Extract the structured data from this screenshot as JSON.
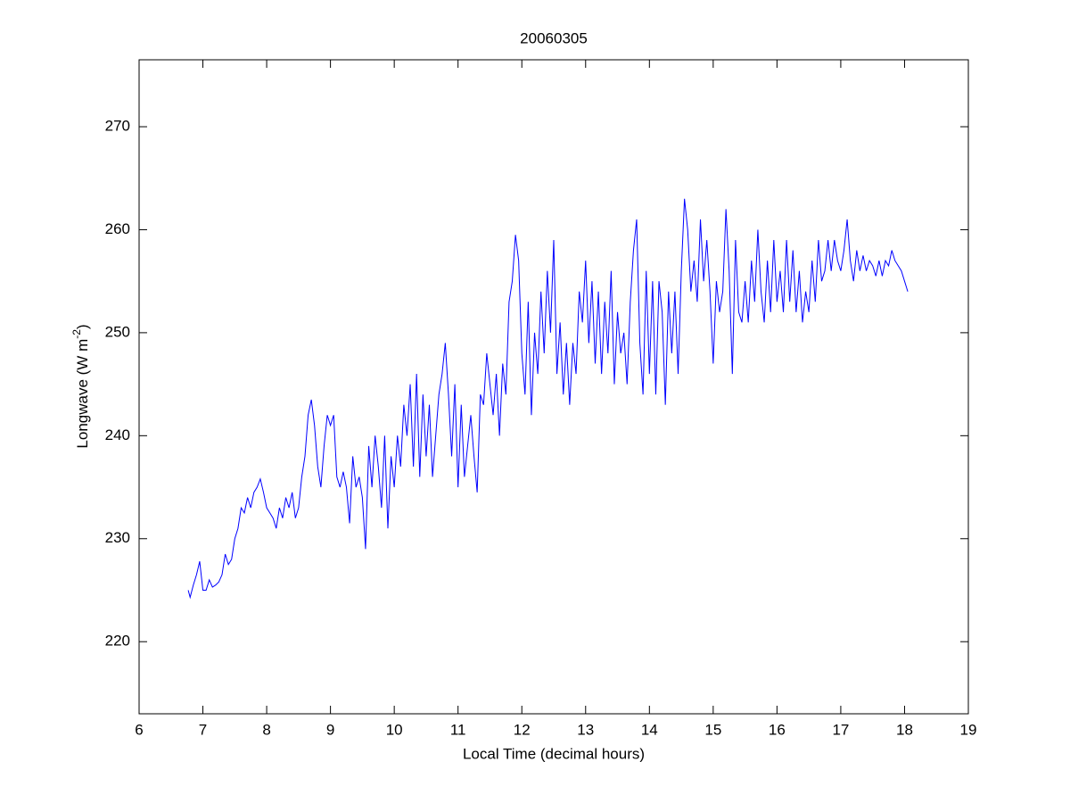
{
  "chart_data": {
    "type": "line",
    "title": "20060305",
    "xlabel": "Local Time (decimal hours)",
    "ylabel": {
      "text": "Longwave (W m",
      "superscript": "-2",
      "suffix": ")"
    },
    "xlim": [
      6,
      19
    ],
    "xticks": [
      6,
      7,
      8,
      9,
      10,
      11,
      12,
      13,
      14,
      15,
      16,
      17,
      18,
      19
    ],
    "ylim": [
      213,
      276.5
    ],
    "yticks": [
      220,
      230,
      240,
      250,
      260,
      270
    ],
    "grid": false,
    "series": [
      {
        "color": "#0000ff",
        "x": [
          6.77,
          6.8,
          6.85,
          6.9,
          6.95,
          7.0,
          7.05,
          7.1,
          7.15,
          7.2,
          7.25,
          7.3,
          7.35,
          7.4,
          7.45,
          7.5,
          7.55,
          7.6,
          7.65,
          7.7,
          7.75,
          7.8,
          7.85,
          7.9,
          7.95,
          8.0,
          8.05,
          8.1,
          8.15,
          8.2,
          8.25,
          8.3,
          8.35,
          8.4,
          8.45,
          8.5,
          8.55,
          8.6,
          8.65,
          8.7,
          8.75,
          8.8,
          8.85,
          8.9,
          8.95,
          9.0,
          9.05,
          9.1,
          9.15,
          9.2,
          9.25,
          9.3,
          9.35,
          9.4,
          9.45,
          9.5,
          9.55,
          9.6,
          9.65,
          9.7,
          9.75,
          9.8,
          9.85,
          9.9,
          9.95,
          10.0,
          10.05,
          10.1,
          10.15,
          10.2,
          10.25,
          10.3,
          10.35,
          10.4,
          10.45,
          10.5,
          10.55,
          10.6,
          10.65,
          10.7,
          10.75,
          10.8,
          10.85,
          10.9,
          10.95,
          11.0,
          11.05,
          11.1,
          11.15,
          11.2,
          11.25,
          11.3,
          11.35,
          11.4,
          11.45,
          11.5,
          11.55,
          11.6,
          11.65,
          11.7,
          11.75,
          11.8,
          11.85,
          11.9,
          11.95,
          12.0,
          12.05,
          12.1,
          12.15,
          12.2,
          12.25,
          12.3,
          12.35,
          12.4,
          12.45,
          12.5,
          12.55,
          12.6,
          12.65,
          12.7,
          12.75,
          12.8,
          12.85,
          12.9,
          12.95,
          13.0,
          13.05,
          13.1,
          13.15,
          13.2,
          13.25,
          13.3,
          13.35,
          13.4,
          13.45,
          13.5,
          13.55,
          13.6,
          13.65,
          13.7,
          13.75,
          13.8,
          13.85,
          13.9,
          13.95,
          14.0,
          14.05,
          14.1,
          14.15,
          14.2,
          14.25,
          14.3,
          14.35,
          14.4,
          14.45,
          14.5,
          14.55,
          14.6,
          14.65,
          14.7,
          14.75,
          14.8,
          14.85,
          14.9,
          14.95,
          15.0,
          15.05,
          15.1,
          15.15,
          15.2,
          15.25,
          15.3,
          15.35,
          15.4,
          15.45,
          15.5,
          15.55,
          15.6,
          15.65,
          15.7,
          15.75,
          15.8,
          15.85,
          15.9,
          15.95,
          16.0,
          16.05,
          16.1,
          16.15,
          16.2,
          16.25,
          16.3,
          16.35,
          16.4,
          16.45,
          16.5,
          16.55,
          16.6,
          16.65,
          16.7,
          16.75,
          16.8,
          16.85,
          16.9,
          16.95,
          17.0,
          17.05,
          17.1,
          17.15,
          17.2,
          17.25,
          17.3,
          17.35,
          17.4,
          17.45,
          17.5,
          17.55,
          17.6,
          17.65,
          17.7,
          17.75,
          17.8,
          17.85,
          17.9,
          17.95,
          18.0,
          18.05
        ],
        "values": [
          225,
          224.3,
          225.5,
          226.5,
          227.8,
          225,
          225,
          226,
          225.3,
          225.5,
          225.8,
          226.5,
          228.5,
          227.5,
          228,
          230,
          231,
          233,
          232.5,
          234,
          233,
          234.5,
          235,
          235.8,
          234.5,
          233,
          232.5,
          232,
          231,
          233,
          232,
          234,
          233,
          234.5,
          232,
          233,
          236,
          238,
          242,
          243.5,
          241,
          237,
          235,
          239,
          242,
          241,
          242,
          236,
          235,
          236.5,
          235,
          231.5,
          238,
          235,
          236,
          234,
          229,
          239,
          235,
          240,
          237,
          233,
          240,
          231,
          238,
          235,
          240,
          237,
          243,
          240,
          245,
          237,
          246,
          236,
          244,
          238,
          243,
          236,
          240,
          244,
          246,
          249,
          244,
          238,
          245,
          235,
          243,
          236,
          239,
          242,
          238,
          234.5,
          244,
          243,
          248,
          245,
          242,
          246,
          240,
          247,
          244,
          253,
          255,
          259.5,
          257,
          248,
          244,
          253,
          242,
          250,
          246,
          254,
          248,
          256,
          250,
          259,
          246,
          251,
          244,
          249,
          243,
          249,
          246,
          254,
          251,
          257,
          249,
          255,
          247,
          254,
          246,
          253,
          248,
          256,
          245,
          252,
          248,
          250,
          245,
          253,
          258,
          261,
          249,
          244,
          256,
          246,
          255,
          244,
          255,
          252,
          243,
          254,
          248,
          254,
          246,
          256,
          263,
          260,
          254,
          257,
          253,
          261,
          255,
          259,
          254,
          247,
          255,
          252,
          254,
          262,
          256,
          246,
          259,
          252,
          251,
          255,
          251,
          257,
          253,
          260,
          254,
          251,
          257,
          252,
          259,
          253,
          256,
          252,
          259,
          253,
          258,
          252,
          256,
          251,
          254,
          252,
          257,
          253,
          259,
          255,
          256,
          259,
          256,
          259,
          257,
          256,
          258,
          261,
          257,
          255,
          258,
          256,
          257.5,
          256,
          257,
          256.5,
          255.5,
          257,
          255.5,
          257,
          256.5,
          258,
          257,
          256.5,
          256,
          255,
          254
        ]
      }
    ]
  }
}
